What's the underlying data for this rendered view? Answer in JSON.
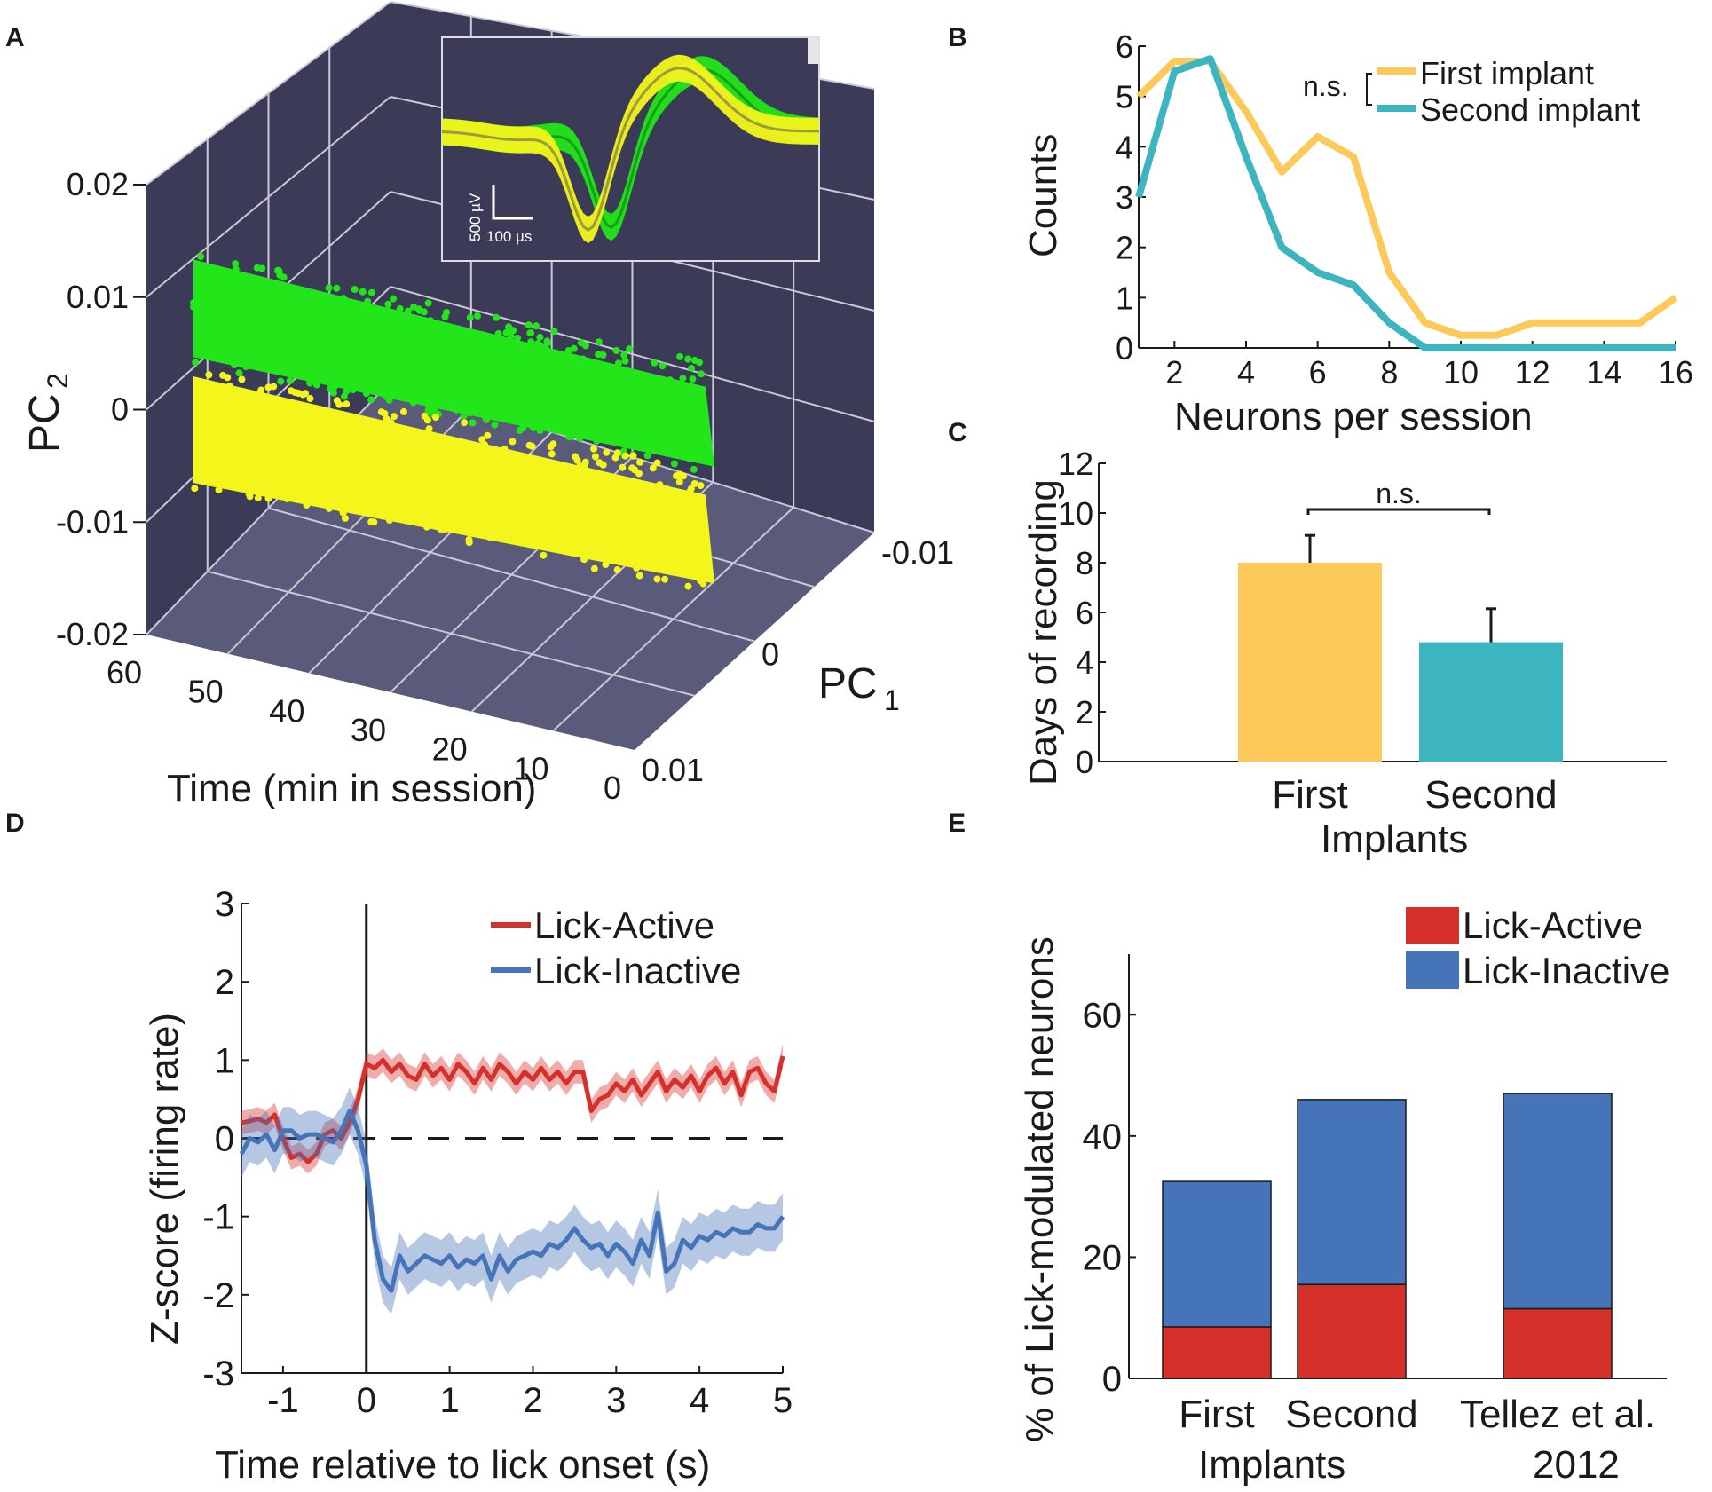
{
  "colors": {
    "first": "#fcc95a",
    "second": "#3cb5c0",
    "active": "#d6302a",
    "inactive": "#4574b8",
    "green": "#22e61a",
    "yellow": "#f4f51a",
    "wall": "#3b3b58",
    "floor": "#5a5a7a"
  },
  "panels": {
    "A": "A",
    "B": "B",
    "C": "C",
    "D": "D",
    "E": "E"
  },
  "chart_data": [
    {
      "panel": "A",
      "type": "scatter",
      "title": "",
      "xlabel": "Time (min in session)",
      "ylabel_main": "PC",
      "ylabel_sub": "2",
      "zlabel_main": "PC",
      "zlabel_sub": "1",
      "time_ticks": [
        "60",
        "50",
        "40",
        "30",
        "20",
        "10",
        "0"
      ],
      "pc1_ticks": [
        "-0.01",
        "0",
        "0.01"
      ],
      "pc2_ticks": [
        "0.02",
        "0.01",
        "0",
        "-0.01",
        "-0.02"
      ],
      "xlim": [
        0,
        60
      ],
      "pc1_lim": [
        -0.01,
        0.01
      ],
      "pc2_lim": [
        -0.02,
        0.02
      ],
      "clusters": [
        {
          "name": "green unit",
          "color": "#22e61a",
          "pc2_start": 0.009,
          "pc2_end": 0.004
        },
        {
          "name": "yellow unit",
          "color": "#f4f51a",
          "pc2_start": -0.001,
          "pc2_end": -0.006
        }
      ],
      "inset": {
        "scale_voltage": "500 µV",
        "scale_time": "100 µs"
      }
    },
    {
      "panel": "B",
      "type": "line",
      "xlabel": "Neurons per session",
      "ylabel": "Counts",
      "xlim": [
        1,
        16
      ],
      "ylim": [
        0,
        6
      ],
      "xticks": [
        2,
        4,
        6,
        8,
        10,
        12,
        14,
        16
      ],
      "yticks": [
        0,
        1,
        2,
        3,
        4,
        5,
        6
      ],
      "x": [
        1,
        2,
        3,
        4,
        5,
        6,
        7,
        8,
        9,
        10,
        11,
        12,
        13,
        14,
        15,
        16
      ],
      "annotation": "n.s.",
      "series": [
        {
          "name": "First implant",
          "values": [
            5,
            5.7,
            5.7,
            4.7,
            3.5,
            4.2,
            3.8,
            1.5,
            0.5,
            0.25,
            0.25,
            0.5,
            0.5,
            0.5,
            0.5,
            1
          ]
        },
        {
          "name": "Second implant",
          "values": [
            3,
            5.5,
            5.75,
            3.8,
            2,
            1.5,
            1.25,
            0.5,
            0,
            0,
            0,
            0,
            0,
            0,
            0,
            0
          ]
        }
      ]
    },
    {
      "panel": "C",
      "type": "bar",
      "xlabel": "Implants",
      "ylabel": "Days of recording",
      "ylim": [
        0,
        12
      ],
      "yticks": [
        0,
        2,
        4,
        6,
        8,
        10,
        12
      ],
      "categories": [
        "First",
        "Second"
      ],
      "values": [
        8,
        4.8
      ],
      "errors": [
        1.1,
        1.35
      ],
      "annotation": "n.s."
    },
    {
      "panel": "D",
      "type": "line",
      "xlabel": "Time relative to lick onset (s)",
      "ylabel": "Z-score (firing rate)",
      "xlim": [
        -1.5,
        5
      ],
      "ylim": [
        -3,
        3
      ],
      "xticks": [
        -1,
        0,
        1,
        2,
        3,
        4,
        5
      ],
      "yticks": [
        3,
        2,
        1,
        0,
        -1,
        -2,
        -3
      ],
      "x": [
        -1.5,
        -1.4,
        -1.3,
        -1.2,
        -1.1,
        -1.0,
        -0.9,
        -0.8,
        -0.7,
        -0.6,
        -0.5,
        -0.4,
        -0.3,
        -0.2,
        -0.1,
        0.0,
        0.1,
        0.2,
        0.3,
        0.4,
        0.5,
        0.6,
        0.7,
        0.8,
        0.9,
        1.0,
        1.1,
        1.2,
        1.3,
        1.4,
        1.5,
        1.6,
        1.7,
        1.8,
        1.9,
        2.0,
        2.1,
        2.2,
        2.3,
        2.4,
        2.5,
        2.6,
        2.7,
        2.8,
        2.9,
        3.0,
        3.1,
        3.2,
        3.3,
        3.4,
        3.5,
        3.6,
        3.7,
        3.8,
        3.9,
        4.0,
        4.1,
        4.2,
        4.3,
        4.4,
        4.5,
        4.6,
        4.7,
        4.8,
        4.9,
        5.0
      ],
      "series": [
        {
          "name": "Lick-Active",
          "band": 0.15,
          "values": [
            0.2,
            0.22,
            0.25,
            0.2,
            0.3,
            0.0,
            -0.25,
            -0.2,
            -0.3,
            -0.2,
            0.05,
            0.1,
            0.0,
            0.2,
            0.5,
            0.95,
            0.9,
            1.0,
            0.85,
            0.95,
            0.8,
            0.75,
            0.95,
            0.8,
            0.9,
            0.75,
            0.95,
            0.85,
            0.7,
            0.9,
            0.75,
            0.95,
            0.85,
            0.7,
            0.85,
            0.75,
            0.9,
            0.75,
            0.85,
            0.7,
            0.85,
            0.85,
            0.35,
            0.5,
            0.55,
            0.7,
            0.6,
            0.75,
            0.55,
            0.7,
            0.85,
            0.6,
            0.75,
            0.65,
            0.8,
            0.6,
            0.8,
            0.9,
            0.7,
            0.85,
            0.55,
            0.85,
            0.9,
            0.7,
            0.6,
            1.05
          ]
        },
        {
          "name": "Lick-Inactive",
          "band": 0.3,
          "values": [
            -0.2,
            0.0,
            -0.05,
            0.05,
            -0.15,
            0.1,
            0.1,
            0.0,
            0.05,
            0.05,
            0.0,
            -0.05,
            0.1,
            0.35,
            0.1,
            -0.35,
            -1.3,
            -1.8,
            -1.95,
            -1.5,
            -1.7,
            -1.6,
            -1.5,
            -1.55,
            -1.6,
            -1.5,
            -1.65,
            -1.55,
            -1.6,
            -1.5,
            -1.8,
            -1.5,
            -1.7,
            -1.55,
            -1.5,
            -1.45,
            -1.5,
            -1.35,
            -1.4,
            -1.3,
            -1.15,
            -1.3,
            -1.4,
            -1.35,
            -1.5,
            -1.35,
            -1.45,
            -1.6,
            -1.3,
            -1.5,
            -0.95,
            -1.7,
            -1.6,
            -1.3,
            -1.4,
            -1.25,
            -1.3,
            -1.2,
            -1.25,
            -1.15,
            -1.2,
            -1.2,
            -1.1,
            -1.15,
            -1.15,
            -1.0
          ]
        }
      ]
    },
    {
      "panel": "E",
      "type": "bar",
      "stacked": true,
      "xlabel": "Implants",
      "ylabel": "% of Lick-modulated neurons",
      "ylim": [
        0,
        70
      ],
      "yticks": [
        0,
        20,
        40,
        60
      ],
      "categories": [
        "First",
        "Second",
        "Tellez et al."
      ],
      "category_extra": "2012",
      "series": [
        {
          "name": "Lick-Active",
          "values": [
            8.5,
            15.5,
            11.5
          ]
        },
        {
          "name": "Lick-Inactive",
          "values": [
            24,
            30.5,
            35.5
          ]
        }
      ]
    }
  ]
}
